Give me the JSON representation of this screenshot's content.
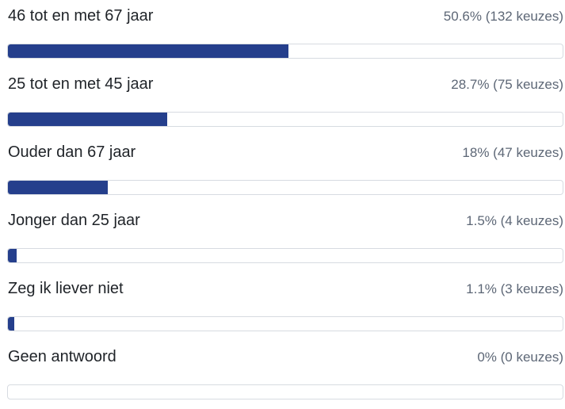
{
  "accent_color": "#253f8c",
  "options": [
    {
      "label": "46 tot en met 67 jaar",
      "result": "50.6% (132 keuzes)",
      "percent": 50.6
    },
    {
      "label": "25 tot en met 45 jaar",
      "result": "28.7% (75 keuzes)",
      "percent": 28.7
    },
    {
      "label": "Ouder dan 67 jaar",
      "result": "18% (47 keuzes)",
      "percent": 18
    },
    {
      "label": "Jonger dan 25 jaar",
      "result": "1.5% (4 keuzes)",
      "percent": 1.5
    },
    {
      "label": "Zeg ik liever niet",
      "result": "1.1% (3 keuzes)",
      "percent": 1.1
    },
    {
      "label": "Geen antwoord",
      "result": "0% (0 keuzes)",
      "percent": 0
    }
  ]
}
